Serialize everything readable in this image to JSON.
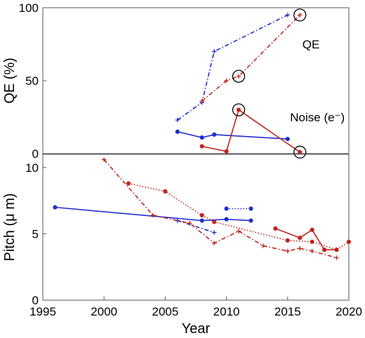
{
  "chart_data": [
    {
      "type": "line",
      "panel": "top",
      "title": "",
      "xlabel": "",
      "ylabel": "QE (%)",
      "xlim": [
        1995,
        2020
      ],
      "ylim": [
        0,
        100
      ],
      "yticks": [
        0,
        50,
        100
      ],
      "grid": false,
      "legend": "none",
      "annotations": [
        {
          "text": "QE",
          "x": 2016.2,
          "y": 72
        },
        {
          "text": "Noise (e⁻)",
          "x": 2015.2,
          "y": 22
        }
      ],
      "circled_points": [
        {
          "x": 2016,
          "y": 95
        },
        {
          "x": 2011,
          "y": 53
        },
        {
          "x": 2011,
          "y": 30
        },
        {
          "x": 2016,
          "y": 1
        }
      ],
      "series": [
        {
          "color": "#1f2fcf",
          "dash": "dashdot",
          "marker": "plus",
          "x": [
            2006,
            2008,
            2009,
            2015
          ],
          "y": [
            23,
            35,
            70,
            95
          ]
        },
        {
          "color": "#c0251f",
          "dash": "dashdot",
          "marker": "plus",
          "x": [
            2008,
            2010,
            2011,
            2016
          ],
          "y": [
            36,
            50,
            53,
            95
          ]
        },
        {
          "color": "#1f2fcf",
          "dash": "solid",
          "marker": "circle",
          "x": [
            2006,
            2008,
            2009,
            2015
          ],
          "y": [
            15,
            11,
            13,
            10
          ]
        },
        {
          "color": "#c0251f",
          "dash": "solid",
          "marker": "circle",
          "x": [
            2008,
            2010,
            2011,
            2016
          ],
          "y": [
            5,
            1.5,
            30,
            1
          ]
        }
      ]
    },
    {
      "type": "line",
      "panel": "bottom",
      "title": "",
      "xlabel": "Year",
      "ylabel": "Pitch (μ m)",
      "xlim": [
        1995,
        2020
      ],
      "ylim": [
        0,
        11
      ],
      "yticks": [
        0,
        5,
        10
      ],
      "xticks": [
        1995,
        2000,
        2005,
        2010,
        2015,
        2020
      ],
      "grid": false,
      "legend": "none",
      "series": [
        {
          "color": "#1f2fcf",
          "dash": "solid",
          "marker": "circle",
          "x": [
            1996,
            2008,
            2010,
            2012
          ],
          "y": [
            7.0,
            6.0,
            6.1,
            6.0
          ]
        },
        {
          "color": "#1f2fcf",
          "dash": "dotted",
          "marker": "circle",
          "x": [
            2010,
            2012
          ],
          "y": [
            6.9,
            6.9
          ]
        },
        {
          "color": "#1f2fcf",
          "dash": "dashdot",
          "marker": "plus",
          "x": [
            2006,
            2009
          ],
          "y": [
            6.0,
            5.1
          ]
        },
        {
          "color": "#c0251f",
          "dash": "dashdot",
          "marker": "plus",
          "x": [
            2000,
            2004,
            2007,
            2009,
            2011,
            2013,
            2015,
            2016,
            2017,
            2019
          ],
          "y": [
            10.6,
            6.4,
            5.8,
            4.3,
            5.2,
            4.1,
            3.7,
            3.9,
            3.7,
            3.2
          ]
        },
        {
          "color": "#c0251f",
          "dash": "dotted",
          "marker": "circle",
          "x": [
            2002,
            2005,
            2008,
            2009,
            2015,
            2017,
            2019,
            2020
          ],
          "y": [
            8.8,
            8.2,
            6.4,
            5.9,
            4.5,
            4.4,
            3.8,
            4.4
          ]
        },
        {
          "color": "#c0251f",
          "dash": "solid",
          "marker": "circle",
          "x": [
            2014,
            2016,
            2017,
            2018,
            2019
          ],
          "y": [
            5.4,
            4.7,
            5.3,
            3.8,
            3.8
          ]
        }
      ]
    }
  ]
}
